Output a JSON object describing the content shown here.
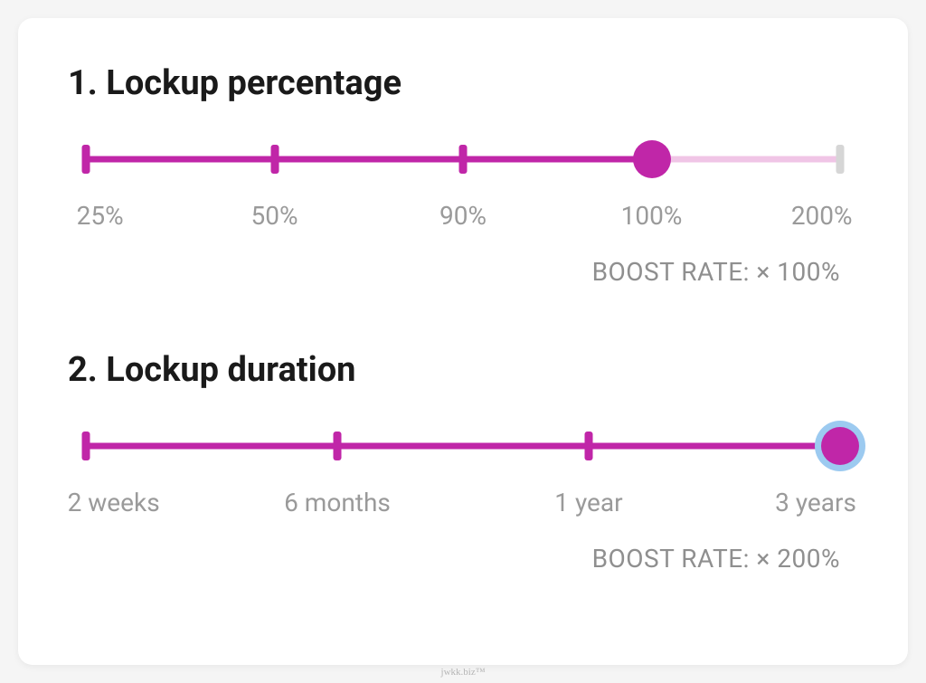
{
  "colors": {
    "primary": "#c026a8",
    "track_unfilled": "#f0c5e6",
    "tick_unfilled": "#d6d6d6",
    "label_text": "#9a9a9a",
    "boost_text": "#8f8f8f",
    "title_text": "#1a1a1a",
    "card_bg": "#ffffff",
    "page_bg": "#f5f5f5",
    "focus_ring": "#9ccaf0"
  },
  "sliders": [
    {
      "id": "lockup-percentage",
      "title": "1. Lockup percentage",
      "ticks": [
        {
          "pos": 0,
          "label": "25%"
        },
        {
          "pos": 25,
          "label": "50%"
        },
        {
          "pos": 50,
          "label": "90%"
        },
        {
          "pos": 75,
          "label": "100%"
        },
        {
          "pos": 100,
          "label": "200%"
        }
      ],
      "value_pos": 75,
      "boost_label": "BOOST RATE: × 100%",
      "focused": false
    },
    {
      "id": "lockup-duration",
      "title": "2. Lockup duration",
      "ticks": [
        {
          "pos": 0,
          "label": "2 weeks"
        },
        {
          "pos": 33.33,
          "label": "6 months"
        },
        {
          "pos": 66.66,
          "label": "1 year"
        },
        {
          "pos": 100,
          "label": "3 years"
        }
      ],
      "value_pos": 100,
      "boost_label": "BOOST RATE: × 200%",
      "focused": true
    }
  ],
  "watermark": "jwkk.biz™"
}
